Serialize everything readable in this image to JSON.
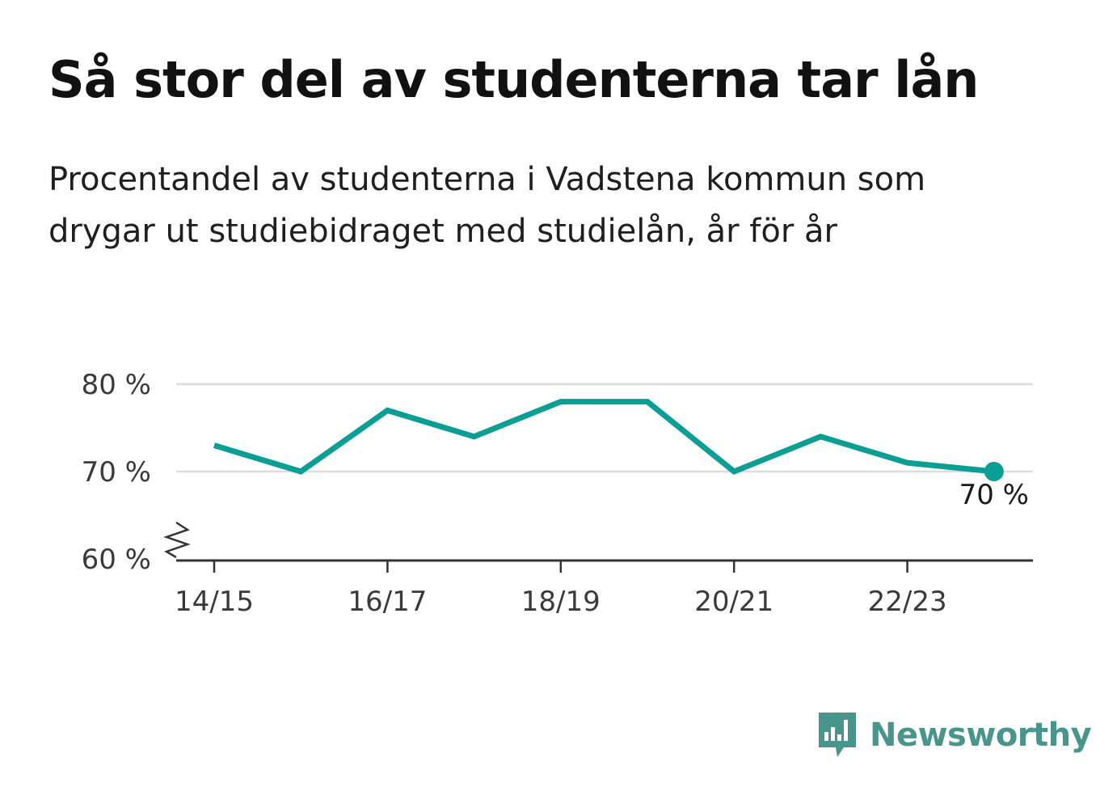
{
  "title": "Så stor del av studenterna tar lån",
  "subtitle_lines": [
    "Procentandel av studenterna i Vadstena kommun som",
    "drygar ut studiebidraget med studielån, år för år"
  ],
  "brand": {
    "name": "Newsworthy",
    "icon": "newsworthy-logo-icon",
    "color": "#47958b"
  },
  "chart_data": {
    "type": "line",
    "x": [
      "14/15",
      "15/16",
      "16/17",
      "17/18",
      "18/19",
      "19/20",
      "20/21",
      "21/22",
      "22/23",
      "23/24"
    ],
    "series": [
      {
        "values": [
          73,
          70,
          77,
          74,
          78,
          78,
          70,
          74,
          71,
          70
        ],
        "color": "#0b9e95"
      }
    ],
    "xticks": [
      "14/15",
      "16/17",
      "18/19",
      "20/21",
      "22/23"
    ],
    "yticks": [
      60,
      70,
      80
    ],
    "ytick_labels": [
      "60 %",
      "70 %",
      "80 %"
    ],
    "ylim": [
      60,
      80
    ],
    "y_axis_break": true,
    "grid": true,
    "end_label": "70 %",
    "xlabel": "",
    "ylabel": ""
  }
}
